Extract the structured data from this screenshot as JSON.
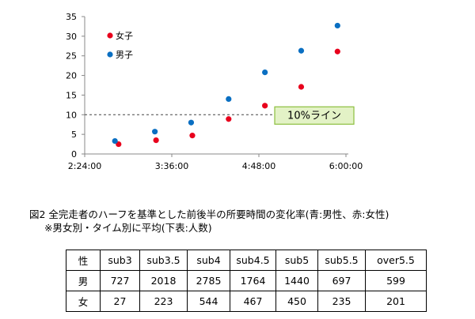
{
  "chart_data": {
    "type": "scatter",
    "title": "",
    "xlabel": "",
    "ylabel": "",
    "x_ticks": [
      "2:24:00",
      "3:36:00",
      "4:48:00",
      "6:00:00"
    ],
    "xlim": [
      "2:24:00",
      "6:00:00"
    ],
    "ylim": [
      0,
      35
    ],
    "y_ticks": [
      0,
      5,
      10,
      15,
      20,
      25,
      30,
      35
    ],
    "grid": false,
    "legend_position": "top-left",
    "series": [
      {
        "name": "女子",
        "color": "#e8001c",
        "points": [
          {
            "x": "2:52:00",
            "y": 2.5
          },
          {
            "x": "3:23:00",
            "y": 3.5
          },
          {
            "x": "3:53:00",
            "y": 4.7
          },
          {
            "x": "4:23:00",
            "y": 8.9
          },
          {
            "x": "4:53:00",
            "y": 12.3
          },
          {
            "x": "5:23:00",
            "y": 17.1
          },
          {
            "x": "5:53:00",
            "y": 26.1
          }
        ]
      },
      {
        "name": "男子",
        "color": "#0a6fc2",
        "points": [
          {
            "x": "2:49:00",
            "y": 3.3
          },
          {
            "x": "3:22:00",
            "y": 5.7
          },
          {
            "x": "3:52:00",
            "y": 8.0
          },
          {
            "x": "4:23:00",
            "y": 14.0
          },
          {
            "x": "4:53:00",
            "y": 20.8
          },
          {
            "x": "5:23:00",
            "y": 26.3
          },
          {
            "x": "5:53:00",
            "y": 32.7
          }
        ]
      }
    ],
    "reference_line": {
      "y": 10,
      "label": "10%ライン",
      "style": "dashed"
    }
  },
  "caption": {
    "line1": "図2  全完走者のハーフを基準とした前後半の所要時間の変化率(青:男性、赤:女性)",
    "line2": "※男女別・タイム別に平均(下表:人数)"
  },
  "table": {
    "header_label": "性",
    "columns": [
      "sub3",
      "sub3.5",
      "sub4",
      "sub4.5",
      "sub5",
      "sub5.5",
      "over5.5"
    ],
    "rows": [
      {
        "label": "男",
        "values": [
          "727",
          "2018",
          "2785",
          "1764",
          "1440",
          "697",
          "599"
        ]
      },
      {
        "label": "女",
        "values": [
          "27",
          "223",
          "544",
          "467",
          "450",
          "235",
          "201"
        ]
      }
    ]
  }
}
